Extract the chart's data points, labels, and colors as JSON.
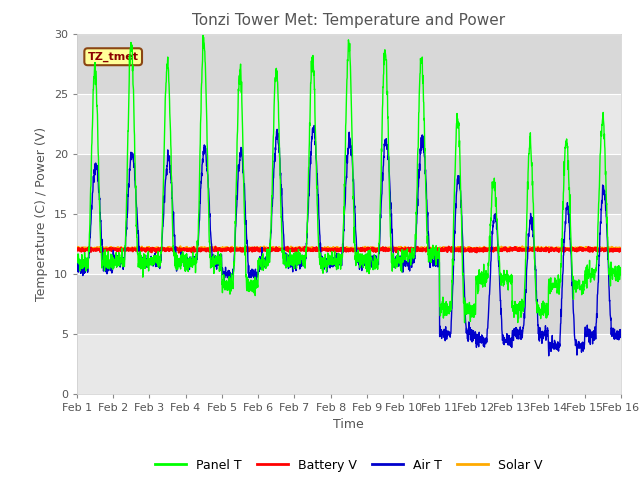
{
  "title": "Tonzi Tower Met: Temperature and Power",
  "xlabel": "Time",
  "ylabel": "Temperature (C) / Power (V)",
  "ylim": [
    0,
    30
  ],
  "yticks": [
    0,
    5,
    10,
    15,
    20,
    25,
    30
  ],
  "legend_label": "TZ_tmet",
  "series": [
    "Panel T",
    "Battery V",
    "Air T",
    "Solar V"
  ],
  "colors": [
    "#00ff00",
    "#ff0000",
    "#0000cc",
    "#ffaa00"
  ],
  "bg_color": "#e0e0e0",
  "band_colors": [
    "#e8e8e8",
    "#d8d8d8"
  ],
  "n_days": 15,
  "panel_t_peaks": [
    27.0,
    29.0,
    27.5,
    29.5,
    27.0,
    27.0,
    28.0,
    29.0,
    28.5,
    28.0,
    23.0,
    17.5,
    21.0,
    21.0,
    23.0
  ],
  "panel_t_mins": [
    11.0,
    11.0,
    11.0,
    11.0,
    9.0,
    11.0,
    11.0,
    11.0,
    11.0,
    11.5,
    7.0,
    9.5,
    7.0,
    9.0,
    10.0
  ],
  "air_t_peaks": [
    19.0,
    20.0,
    19.5,
    20.5,
    20.0,
    21.5,
    22.0,
    21.0,
    21.0,
    21.0,
    18.0,
    15.0,
    14.5,
    15.5,
    17.0
  ],
  "air_t_mins": [
    10.5,
    11.0,
    11.0,
    11.0,
    10.0,
    11.0,
    11.0,
    11.0,
    11.0,
    11.0,
    5.0,
    4.5,
    5.0,
    4.0,
    5.0
  ],
  "battery_v": 12.0,
  "solar_v": 12.1,
  "x_tick_labels": [
    "Feb 1",
    "Feb 2",
    "Feb 3",
    "Feb 4",
    "Feb 5",
    "Feb 6",
    "Feb 7",
    "Feb 8",
    "Feb 9",
    "Feb 10",
    "Feb 11",
    "Feb 12",
    "Feb 13",
    "Feb 14",
    "Feb 15",
    "Feb 16"
  ]
}
